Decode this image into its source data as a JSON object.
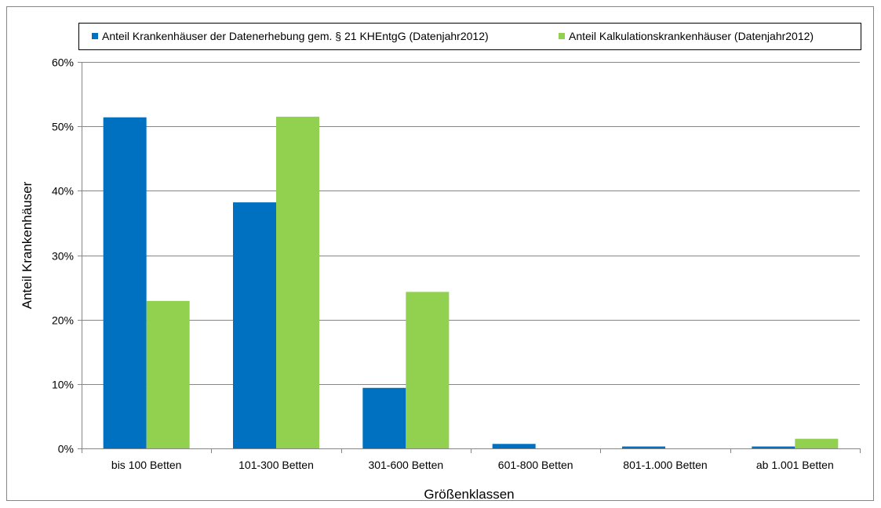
{
  "chart_data": {
    "type": "bar",
    "categories": [
      "bis 100 Betten",
      "101-300 Betten",
      "301-600 Betten",
      "601-800 Betten",
      "801-1.000 Betten",
      "ab 1.001 Betten"
    ],
    "series": [
      {
        "name": "Anteil Krankenhäuser der Datenerhebung gem. § 21 KHEntgG (Datenjahr2012)",
        "color": "#0070c0",
        "values": [
          51.4,
          38.2,
          9.4,
          0.7,
          0.3,
          0.3
        ]
      },
      {
        "name": "Anteil Kalkulationskrankenhäuser (Datenjahr2012)",
        "color": "#92d050",
        "values": [
          22.9,
          51.5,
          24.3,
          0,
          0,
          1.5
        ]
      }
    ],
    "xlabel": "Größenklassen",
    "ylabel": "Anteil Krankenhäuser",
    "ylim": [
      0,
      60
    ],
    "yticks": [
      "0%",
      "10%",
      "20%",
      "30%",
      "40%",
      "50%",
      "60%"
    ],
    "grid": true,
    "legend_position": "top"
  }
}
